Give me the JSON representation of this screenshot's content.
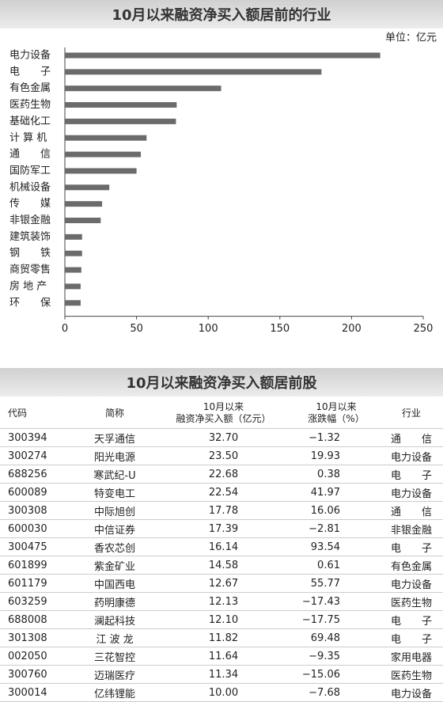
{
  "chart_data": {
    "type": "bar",
    "title": "10月以来融资净买入额居前的行业",
    "unit": "单位：亿元",
    "categories": [
      "电力设备",
      "电　　子",
      "有色金属",
      "医药生物",
      "基础化工",
      "计 算 机",
      "通　　信",
      "国防军工",
      "机械设备",
      "传　　媒",
      "非银金融",
      "建筑装饰",
      "钢　　铁",
      "商贸零售",
      "房 地 产",
      "环　　保"
    ],
    "values": [
      220,
      179,
      109,
      78,
      77.5,
      57,
      53,
      50,
      31,
      26,
      25,
      12,
      12,
      11.5,
      11,
      11
    ],
    "color": "#6b6b6b",
    "xlim": [
      0,
      250
    ],
    "xticks": [
      0,
      50,
      100,
      150,
      200,
      250
    ]
  },
  "table": {
    "title": "10月以来融资净买入额居前股",
    "header": [
      "代码",
      "简称",
      "10月以来\n融资净买入额（亿元）",
      "10月以来\n涨跌幅（%）",
      "行业"
    ],
    "rows": [
      [
        "300394",
        "天孚通信",
        "32.70",
        "−1.32",
        "通　　信"
      ],
      [
        "300274",
        "阳光电源",
        "23.50",
        "19.93",
        "电力设备"
      ],
      [
        "688256",
        "寒武纪-U",
        "22.68",
        "0.38",
        "电　　子"
      ],
      [
        "600089",
        "特变电工",
        "22.54",
        "41.97",
        "电力设备"
      ],
      [
        "300308",
        "中际旭创",
        "17.78",
        "16.06",
        "通　　信"
      ],
      [
        "600030",
        "中信证券",
        "17.39",
        "−2.81",
        "非银金融"
      ],
      [
        "300475",
        "香农芯创",
        "16.14",
        "93.54",
        "电　　子"
      ],
      [
        "601899",
        "紫金矿业",
        "14.58",
        "0.61",
        "有色金属"
      ],
      [
        "601179",
        "中国西电",
        "12.67",
        "55.77",
        "电力设备"
      ],
      [
        "603259",
        "药明康德",
        "12.13",
        "−17.43",
        "医药生物"
      ],
      [
        "688008",
        "澜起科技",
        "12.10",
        "−17.75",
        "电　　子"
      ],
      [
        "301308",
        "江 波 龙",
        "11.82",
        "69.48",
        "电　　子"
      ],
      [
        "002050",
        "三花智控",
        "11.64",
        "−9.35",
        "家用电器"
      ],
      [
        "300760",
        "迈瑞医疗",
        "11.34",
        "−15.06",
        "医药生物"
      ],
      [
        "300014",
        "亿纬锂能",
        "10.00",
        "−7.68",
        "电力设备"
      ]
    ]
  }
}
